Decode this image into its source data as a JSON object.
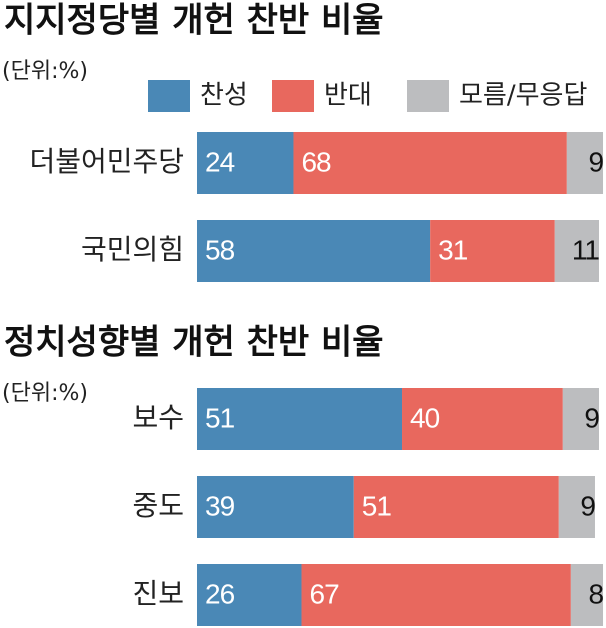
{
  "chart_data": [
    {
      "type": "stacked-bar",
      "title": "지지정당별 개헌 찬반 비율",
      "subtitle": "(단위:%)",
      "legend": "top",
      "categories": [
        "더불어민주당",
        "국민의힘"
      ],
      "series": [
        {
          "name": "찬성",
          "color": "#4a88b6",
          "values": [
            24,
            58
          ]
        },
        {
          "name": "반대",
          "color": "#e8685e",
          "values": [
            68,
            31
          ]
        },
        {
          "name": "모름/무응답",
          "color": "#bcbdbf",
          "values": [
            9,
            11
          ]
        }
      ]
    },
    {
      "type": "stacked-bar",
      "title": "정치성향별 개헌 찬반 비율",
      "subtitle": "(단위:%)",
      "categories": [
        "보수",
        "중도",
        "진보"
      ],
      "series": [
        {
          "color": "#4a88b6",
          "values": [
            51,
            39,
            26
          ]
        },
        {
          "color": "#e8685e",
          "values": [
            40,
            51,
            67
          ]
        },
        {
          "color": "#bcbdbf",
          "values": [
            9,
            9,
            8
          ]
        }
      ]
    }
  ]
}
